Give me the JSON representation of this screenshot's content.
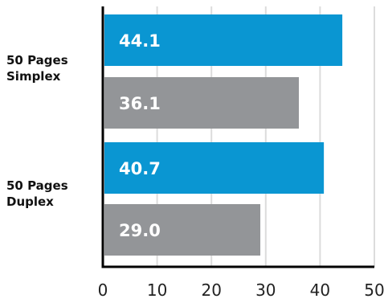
{
  "chart_data": {
    "type": "bar",
    "orientation": "horizontal",
    "categories": [
      [
        "50 Pages",
        "Simplex"
      ],
      [
        "50 Pages",
        "Duplex"
      ]
    ],
    "series": [
      {
        "color": "#0a96d2",
        "values": [
          44.1,
          40.7
        ]
      },
      {
        "color": "#939598",
        "values": [
          36.1,
          29.0
        ]
      }
    ],
    "value_labels": [
      [
        "44.1",
        "36.1"
      ],
      [
        "40.7",
        "29.0"
      ]
    ],
    "xticks": [
      "0",
      "10",
      "20",
      "30",
      "40",
      "50"
    ],
    "xlim": [
      0,
      50
    ],
    "grid": "vertical",
    "legend": "none"
  }
}
